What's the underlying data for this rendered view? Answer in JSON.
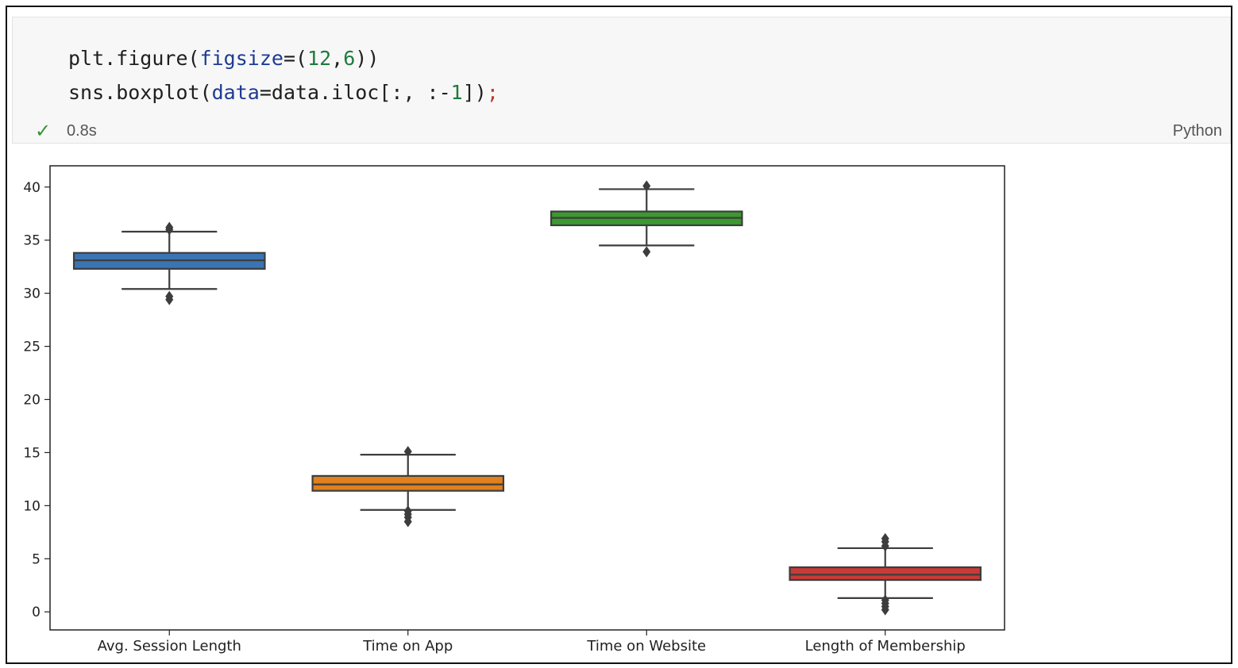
{
  "cell": {
    "code_lines": [
      [
        {
          "text": "plt.figure(",
          "kind": "plain"
        },
        {
          "text": "figsize",
          "kind": "param"
        },
        {
          "text": "=(",
          "kind": "plain"
        },
        {
          "text": "12",
          "kind": "num"
        },
        {
          "text": ",",
          "kind": "plain"
        },
        {
          "text": "6",
          "kind": "num"
        },
        {
          "text": "))",
          "kind": "plain"
        }
      ],
      [
        {
          "text": "sns.boxplot(",
          "kind": "plain"
        },
        {
          "text": "data",
          "kind": "param"
        },
        {
          "text": "=data.iloc[:, :-",
          "kind": "plain"
        },
        {
          "text": "1",
          "kind": "num"
        },
        {
          "text": "])",
          "kind": "plain"
        },
        {
          "text": ";",
          "kind": "semi"
        }
      ]
    ],
    "status_icon": "check-icon",
    "exec_time": "0.8s",
    "language": "Python"
  },
  "colors": {
    "session": "#3a74b5",
    "app": "#e0801e",
    "website": "#3a9a2e",
    "membership": "#c73b38"
  },
  "chart_data": {
    "type": "boxplot",
    "categories": [
      "Avg. Session Length",
      "Time on App",
      "Time on Website",
      "Length of Membership"
    ],
    "ylim": [
      -1.7,
      42
    ],
    "yticks": [
      0,
      5,
      10,
      15,
      20,
      25,
      30,
      35,
      40
    ],
    "grid": false,
    "series": [
      {
        "q1": 32.3,
        "median": 33.1,
        "q3": 33.8,
        "whisker_low": 30.4,
        "whisker_high": 35.8,
        "outliers": [
          29.4,
          29.7,
          36.0,
          36.2
        ],
        "color": "#3a74b5"
      },
      {
        "q1": 11.4,
        "median": 12.0,
        "q3": 12.8,
        "whisker_low": 9.6,
        "whisker_high": 14.8,
        "outliers": [
          8.5,
          8.9,
          9.2,
          9.5,
          15.1
        ],
        "color": "#e0801e"
      },
      {
        "q1": 36.4,
        "median": 37.1,
        "q3": 37.7,
        "whisker_low": 34.5,
        "whisker_high": 39.8,
        "outliers": [
          33.9,
          40.1
        ],
        "color": "#3a9a2e"
      },
      {
        "q1": 3.0,
        "median": 3.5,
        "q3": 4.2,
        "whisker_low": 1.3,
        "whisker_high": 6.0,
        "outliers": [
          0.2,
          0.5,
          0.8,
          1.1,
          6.2,
          6.6,
          6.9
        ],
        "color": "#c73b38"
      }
    ]
  }
}
